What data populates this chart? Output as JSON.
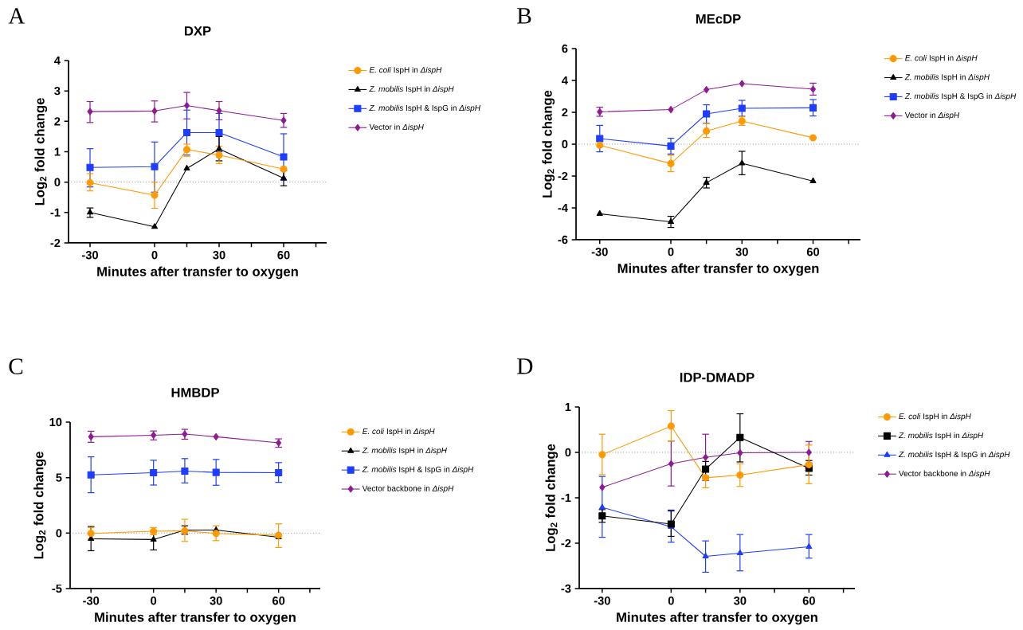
{
  "chart_data": [
    {
      "type": "line",
      "title": "DXP",
      "annotations": [
        "A"
      ],
      "xlabel": "Minutes after transfer to oxygen",
      "ylabel": "Log$_{2}$ fold change",
      "x": [
        -30,
        0,
        15,
        30,
        60
      ],
      "xlim": [
        -40,
        80
      ],
      "xticks": [
        -30,
        0,
        {
          "value": 15,
          "label": null
        },
        30,
        {
          "value": 45,
          "label": null
        },
        60,
        {
          "value": 75,
          "label": null
        }
      ],
      "ylim": [
        -2,
        4
      ],
      "yticks": [
        -2,
        -1,
        0,
        1,
        2,
        3,
        4
      ],
      "legend": "right",
      "ref_lines": [
        {
          "axis": "y",
          "value": 0,
          "line_style": "dotted",
          "color": "#555555"
        }
      ],
      "series": [
        {
          "name": "*E. coli* IspH in *ΔispH*",
          "color": "#ff9900",
          "marker": "circle",
          "values": [
            -0.02,
            -0.43,
            1.07,
            0.89,
            0.43
          ],
          "errors": [
            [
              -0.29,
              0.28
            ],
            [
              -0.86,
              0.0
            ],
            [
              0.85,
              1.25
            ],
            [
              0.61,
              1.18
            ],
            null
          ]
        },
        {
          "name": "*Z. mobilis* IspH in *ΔispH*",
          "color": "#000000",
          "marker": "triangle",
          "values": [
            -1.0,
            -1.47,
            0.45,
            1.09,
            0.13
          ],
          "errors": [
            [
              -1.16,
              -0.85
            ],
            null,
            null,
            [
              0.7,
              1.5
            ],
            [
              -0.12,
              0.38
            ]
          ]
        },
        {
          "name": "*Z. mobilis* IspH & IspG in *ΔispH*",
          "color": "#1f3dff",
          "marker": "square",
          "values": [
            0.48,
            0.51,
            1.63,
            1.63,
            0.83
          ],
          "errors": [
            [
              -0.16,
              1.1
            ],
            [
              -0.33,
              1.32
            ],
            [
              0.89,
              2.37
            ],
            [
              1.0,
              2.26
            ],
            [
              0.06,
              1.59
            ]
          ]
        },
        {
          "name": "Vector in *ΔispH*",
          "color": "#8e1b93",
          "marker": "diamond",
          "values": [
            2.32,
            2.34,
            2.52,
            2.35,
            2.03
          ],
          "errors": [
            [
              1.96,
              2.65
            ],
            [
              1.98,
              2.67
            ],
            [
              2.08,
              2.95
            ],
            [
              2.05,
              2.65
            ],
            [
              1.8,
              2.26
            ]
          ]
        }
      ]
    },
    {
      "type": "line",
      "title": "MEcDP",
      "annotations": [
        "B"
      ],
      "xlabel": "Minutes after transfer to oxygen",
      "ylabel": "Log$_{2}$ fold change",
      "x": [
        -30,
        0,
        15,
        30,
        60
      ],
      "xlim": [
        -40,
        80
      ],
      "xticks": [
        -30,
        0,
        {
          "value": 15,
          "label": null
        },
        30,
        {
          "value": 45,
          "label": null
        },
        60,
        {
          "value": 75,
          "label": null
        }
      ],
      "ylim": [
        -6,
        6
      ],
      "yticks": [
        -6,
        -4,
        -2,
        0,
        2,
        4,
        6
      ],
      "legend": "right",
      "ref_lines": [
        {
          "axis": "y",
          "value": 0,
          "line_style": "dotted",
          "color": "#555555"
        }
      ],
      "series": [
        {
          "name": "*E. coli* IspH in *ΔispH*",
          "color": "#ff9900",
          "marker": "circle",
          "values": [
            -0.07,
            -1.22,
            0.82,
            1.45,
            0.4
          ],
          "errors": [
            null,
            [
              -1.73,
              -0.7
            ],
            [
              0.42,
              1.3
            ],
            [
              1.18,
              1.72
            ],
            null
          ]
        },
        {
          "name": "*Z. mobilis* IspH in *ΔispH*",
          "color": "#000000",
          "marker": "triangle",
          "values": [
            -4.37,
            -4.88,
            -2.42,
            -1.2,
            -2.32
          ],
          "errors": [
            null,
            [
              -5.23,
              -4.53
            ],
            [
              -2.75,
              -2.08
            ],
            [
              -1.92,
              -0.45
            ],
            null
          ]
        },
        {
          "name": "*Z. mobilis* IspH & IspG in *ΔispH*",
          "color": "#1f3dff",
          "marker": "square",
          "values": [
            0.35,
            -0.12,
            1.9,
            2.25,
            2.28
          ],
          "errors": [
            [
              -0.48,
              1.18
            ],
            [
              -0.62,
              0.37
            ],
            [
              1.32,
              2.47
            ],
            [
              1.75,
              2.75
            ],
            [
              1.77,
              2.8
            ]
          ]
        },
        {
          "name": "Vector in *ΔispH*",
          "color": "#8e1b93",
          "marker": "diamond",
          "values": [
            2.03,
            2.17,
            3.42,
            3.8,
            3.45
          ],
          "errors": [
            [
              1.75,
              2.32
            ],
            null,
            null,
            null,
            [
              3.08,
              3.83
            ]
          ]
        }
      ]
    },
    {
      "type": "line",
      "title": "HMBDP",
      "annotations": [
        "C"
      ],
      "xlabel": "Minutes after transfer to oxygen",
      "ylabel": "Log$_{2}$ fold change",
      "x": [
        -30,
        0,
        15,
        30,
        60
      ],
      "xlim": [
        -40,
        80
      ],
      "xticks": [
        -30,
        0,
        {
          "value": 15,
          "label": null
        },
        30,
        {
          "value": 45,
          "label": null
        },
        60,
        {
          "value": 75,
          "label": null
        }
      ],
      "ylim": [
        -5,
        10
      ],
      "yticks": [
        -5,
        0,
        5,
        10
      ],
      "legend": "right",
      "ref_lines": [
        {
          "axis": "y",
          "value": 0,
          "line_style": "dotted",
          "color": "#555555"
        }
      ],
      "series": [
        {
          "name": "*E. coli* IspH in *ΔispH*",
          "color": "#ff9900",
          "marker": "circle",
          "values": [
            -0.03,
            0.16,
            0.21,
            -0.03,
            -0.2
          ],
          "errors": [
            [
              -0.55,
              0.5
            ],
            [
              -0.15,
              0.5
            ],
            [
              -0.75,
              1.24
            ],
            [
              -0.68,
              0.66
            ],
            [
              -1.3,
              0.83
            ]
          ]
        },
        {
          "name": "*Z. mobilis* IspH in *ΔispH*",
          "color": "#000000",
          "marker": "triangle",
          "values": [
            -0.51,
            -0.58,
            0.28,
            0.28,
            -0.37
          ],
          "errors": [
            [
              -1.59,
              0.59
            ],
            [
              -1.52,
              0.13
            ],
            [
              -0.1,
              0.66
            ],
            null,
            null
          ]
        },
        {
          "name": "*Z. mobilis* IspH & IspG in *ΔispH*",
          "color": "#1f3dff",
          "marker": "square",
          "values": [
            5.25,
            5.44,
            5.59,
            5.47,
            5.44
          ],
          "errors": [
            [
              3.64,
              6.87
            ],
            [
              4.33,
              6.56
            ],
            [
              4.52,
              6.71
            ],
            [
              4.31,
              6.64
            ],
            [
              4.57,
              6.35
            ]
          ]
        },
        {
          "name": "Vector backbone in *ΔispH*",
          "color": "#8e1b93",
          "marker": "diamond",
          "values": [
            8.68,
            8.82,
            8.92,
            8.68,
            8.13
          ],
          "errors": [
            [
              8.18,
              9.18
            ],
            [
              8.4,
              9.2
            ],
            [
              8.46,
              9.35
            ],
            null,
            [
              7.74,
              8.49
            ]
          ]
        }
      ]
    },
    {
      "type": "line",
      "title": "IDP-DMADP",
      "annotations": [
        "D"
      ],
      "xlabel": "Minutes after transfer to oxygen",
      "ylabel": "Log$_{2}$ fold change",
      "x": [
        -30,
        0,
        15,
        30,
        60
      ],
      "xlim": [
        -40,
        80
      ],
      "xticks": [
        -30,
        0,
        {
          "value": 15,
          "label": null
        },
        30,
        {
          "value": 45,
          "label": null
        },
        60,
        {
          "value": 75,
          "label": null
        }
      ],
      "ylim": [
        -3,
        1
      ],
      "yticks": [
        -3,
        -2,
        -1,
        0,
        1
      ],
      "legend": "right",
      "ref_lines": [
        {
          "axis": "y",
          "value": 0,
          "line_style": "dotted",
          "color": "#555555"
        }
      ],
      "series": [
        {
          "name": "*E. coli* IspH in *ΔispH*",
          "color": "#ff9900",
          "marker": "circle",
          "values": [
            -0.05,
            0.58,
            -0.56,
            -0.5,
            -0.27
          ],
          "errors": [
            [
              -0.49,
              0.4
            ],
            [
              0.25,
              0.92
            ],
            [
              -0.78,
              -0.56
            ],
            [
              -0.75,
              -0.25
            ],
            [
              -0.69,
              0.16
            ]
          ]
        },
        {
          "name": "*Z. mobilis* IspH in *ΔispH*",
          "color": "#000000",
          "marker": "square",
          "values": [
            -1.4,
            -1.58,
            -0.37,
            0.33,
            -0.35
          ],
          "errors": [
            [
              -1.54,
              -1.26
            ],
            [
              -1.85,
              -1.29
            ],
            [
              -0.53,
              -0.2
            ],
            [
              -0.21,
              0.85
            ],
            [
              -0.5,
              -0.18
            ]
          ]
        },
        {
          "name": "*Z. mobilis* IspH & IspG in *ΔispH*",
          "color": "#1f3dff",
          "marker": "triangle",
          "values": [
            -1.21,
            -1.64,
            -2.29,
            -2.22,
            -2.08
          ],
          "errors": [
            [
              -1.87,
              -0.53
            ],
            [
              -1.98,
              -1.27
            ],
            [
              -2.64,
              -1.95
            ],
            [
              -2.61,
              -1.81
            ],
            [
              -2.33,
              -1.81
            ]
          ]
        },
        {
          "name": "Vector backbone in *ΔispH*",
          "color": "#8e1b93",
          "marker": "diamond",
          "values": [
            -0.77,
            -0.25,
            -0.11,
            -0.01,
            0.0
          ],
          "errors": [
            null,
            [
              -0.74,
              0.25
            ],
            [
              -0.62,
              0.4
            ],
            null,
            [
              -0.24,
              0.24
            ]
          ]
        }
      ]
    }
  ]
}
